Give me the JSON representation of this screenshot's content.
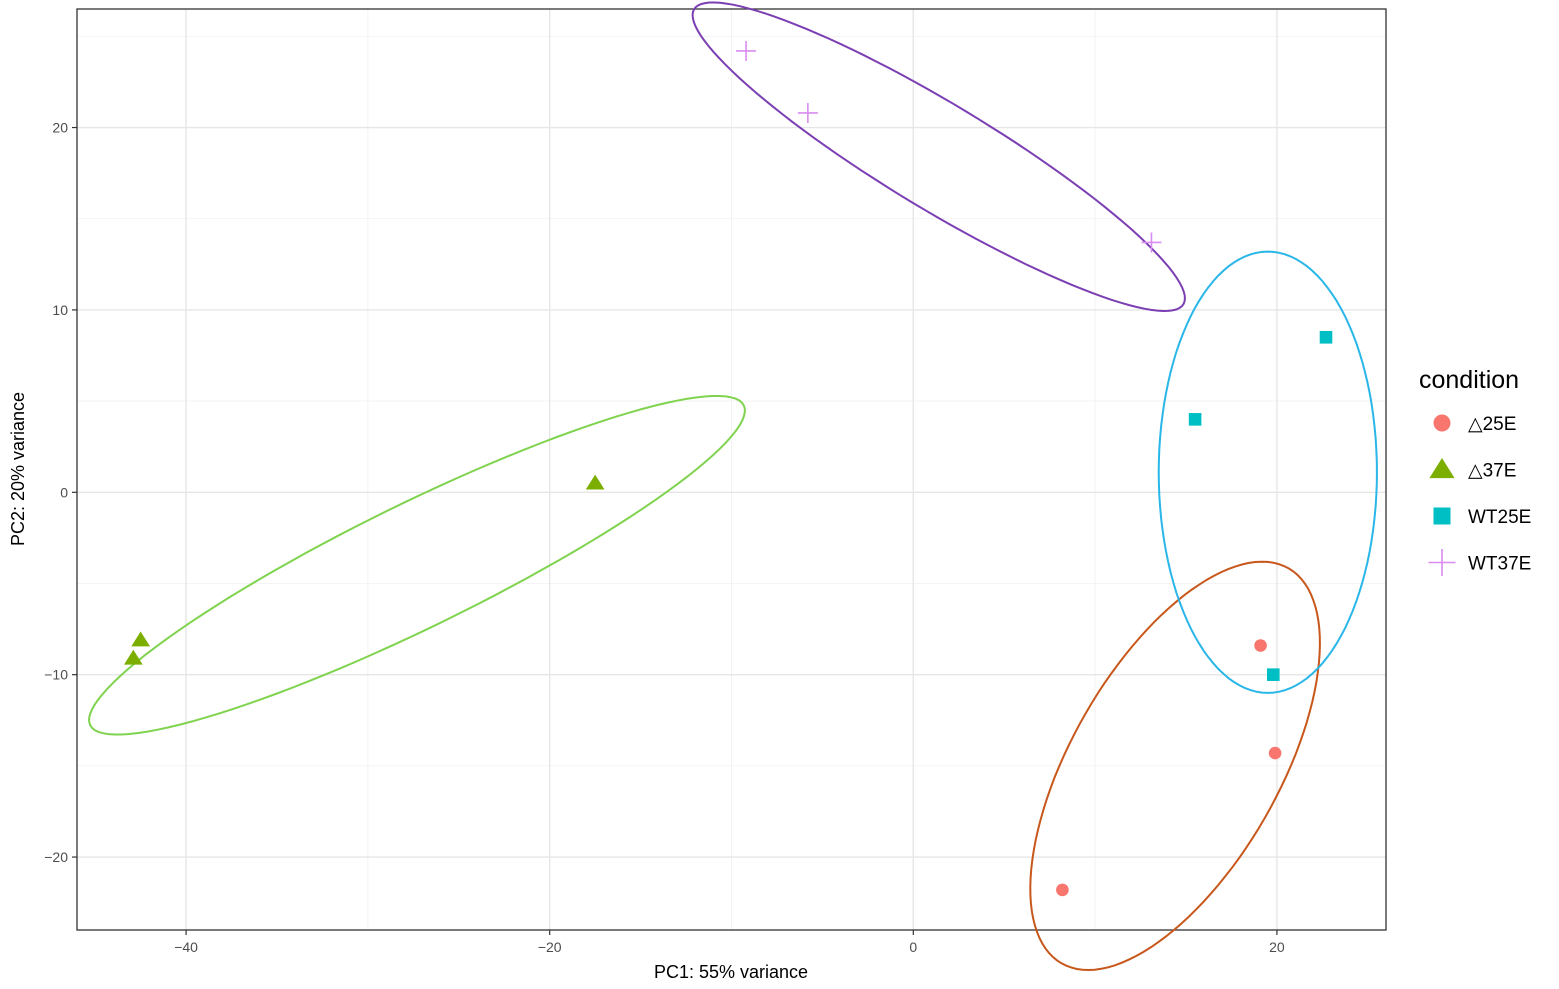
{
  "chart_data": {
    "type": "scatter",
    "xlabel": "PC1: 55% variance",
    "ylabel": "PC2: 20% variance",
    "xlim": [
      -46,
      26
    ],
    "ylim": [
      -24,
      26.5
    ],
    "x_ticks": [
      -40,
      -20,
      0,
      20
    ],
    "y_ticks": [
      -20,
      -10,
      0,
      10,
      20
    ],
    "grid": true,
    "legend": {
      "title": "condition",
      "position": "right",
      "entries": [
        "△25E",
        "△37E",
        "WT25E",
        "WT37E"
      ]
    },
    "series": [
      {
        "name": "△25E",
        "color": "#F8766D",
        "marker": "circle",
        "ellipse_color": "#C8571B",
        "points": [
          [
            8.2,
            -21.8
          ],
          [
            19.1,
            -8.4
          ],
          [
            19.9,
            -14.3
          ]
        ]
      },
      {
        "name": "△37E",
        "color": "#7CAE00",
        "marker": "triangle",
        "ellipse_color": "#7FD34E",
        "points": [
          [
            -17.5,
            0.5
          ],
          [
            -42.5,
            -8.1
          ],
          [
            -42.9,
            -9.1
          ]
        ]
      },
      {
        "name": "WT25E",
        "color": "#00BFC4",
        "marker": "square",
        "ellipse_color": "#29B6E8",
        "points": [
          [
            15.5,
            4.0
          ],
          [
            22.7,
            8.5
          ],
          [
            19.8,
            -10.0
          ]
        ]
      },
      {
        "name": "WT37E",
        "color": "#D98CF0",
        "marker": "plus",
        "ellipse_color": "#7B3FB3",
        "points": [
          [
            -9.2,
            24.2
          ],
          [
            -5.8,
            20.8
          ],
          [
            13.1,
            13.7
          ]
        ]
      }
    ],
    "ellipses": [
      {
        "series": "△25E",
        "cx": 14.4,
        "cy": -15.0,
        "semi_major": 12.5,
        "semi_minor": 5.7,
        "angle_deg": 60
      },
      {
        "series": "△37E",
        "cx": -27.3,
        "cy": -4.0,
        "semi_major": 20.0,
        "semi_minor": 3.4,
        "angle_deg": 26
      },
      {
        "series": "WT25E",
        "cx": 19.5,
        "cy": 1.1,
        "semi_major": 12.1,
        "semi_minor": 6.0,
        "angle_deg": 90
      },
      {
        "series": "WT37E",
        "cx": 1.4,
        "cy": 18.4,
        "semi_major": 15.7,
        "semi_minor": 2.9,
        "angle_deg": -31
      }
    ]
  }
}
